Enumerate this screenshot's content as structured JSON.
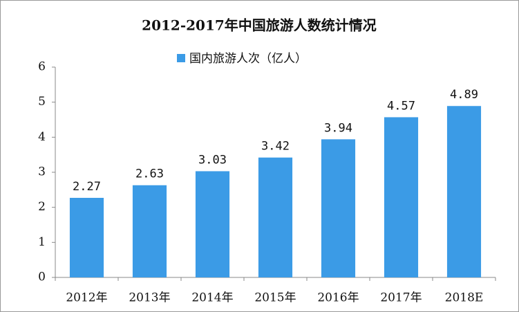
{
  "chart_data": {
    "type": "bar",
    "title": "2012-2017年中国旅游人数统计情况",
    "categories": [
      "2012年",
      "2013年",
      "2014年",
      "2015年",
      "2016年",
      "2017年",
      "2018E"
    ],
    "series": [
      {
        "name": "国内旅游人次（亿人）",
        "color": "#3b9be6",
        "values": [
          2.27,
          2.63,
          3.03,
          3.42,
          3.94,
          4.57,
          4.89
        ]
      }
    ],
    "ylim": [
      0,
      6
    ],
    "yticks": [
      0,
      1,
      2,
      3,
      4,
      5,
      6
    ],
    "grid": false,
    "legend": "top"
  }
}
